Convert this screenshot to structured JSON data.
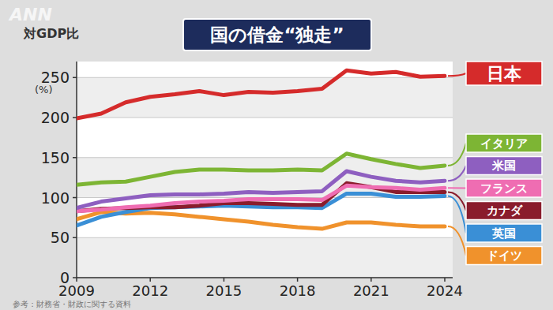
{
  "chart_data": {
    "type": "line",
    "title": "国の借金“独走”",
    "y_label": "対GDP比",
    "y_unit": "(%)",
    "source": "参考：財務省・財政に関する資料",
    "watermark": "ANN",
    "x": [
      2009,
      2010,
      2011,
      2012,
      2013,
      2014,
      2015,
      2016,
      2017,
      2018,
      2019,
      2020,
      2021,
      2022,
      2023,
      2024
    ],
    "xlim": [
      2009,
      2024
    ],
    "xticks": [
      2009,
      2012,
      2015,
      2018,
      2021,
      2024
    ],
    "ylim": [
      0,
      270
    ],
    "yticks": [
      0,
      50,
      100,
      150,
      200,
      250
    ],
    "grid": true,
    "legend": "right",
    "series": [
      {
        "name": "日本",
        "color": "#d52b2b",
        "values": [
          199,
          205,
          219,
          226,
          229,
          233,
          228,
          232,
          231,
          233,
          236,
          259,
          255,
          257,
          251,
          252
        ]
      },
      {
        "name": "イタリア",
        "color": "#7db534",
        "values": [
          116,
          119,
          120,
          126,
          132,
          135,
          135,
          134,
          134,
          135,
          134,
          155,
          148,
          142,
          137,
          140
        ]
      },
      {
        "name": "米国",
        "color": "#8e5fc0",
        "values": [
          87,
          95,
          99,
          103,
          104,
          104,
          105,
          107,
          106,
          107,
          108,
          133,
          126,
          121,
          119,
          121
        ]
      },
      {
        "name": "フランス",
        "color": "#ef6db2",
        "values": [
          83,
          85,
          88,
          90,
          93,
          95,
          96,
          98,
          98,
          98,
          97,
          115,
          113,
          112,
          110,
          112
        ]
      },
      {
        "name": "カナダ",
        "color": "#8a1c2c",
        "values": [
          83,
          86,
          87,
          88,
          88,
          90,
          93,
          93,
          92,
          91,
          91,
          118,
          113,
          107,
          107,
          107
        ]
      },
      {
        "name": "英国",
        "color": "#3a8fd6",
        "values": [
          65,
          76,
          82,
          87,
          88,
          89,
          90,
          89,
          88,
          88,
          87,
          105,
          105,
          101,
          101,
          102
        ]
      },
      {
        "name": "ドイツ",
        "color": "#f0922c",
        "values": [
          73,
          82,
          80,
          81,
          79,
          76,
          73,
          70,
          66,
          63,
          61,
          69,
          69,
          66,
          64,
          64
        ]
      }
    ]
  }
}
